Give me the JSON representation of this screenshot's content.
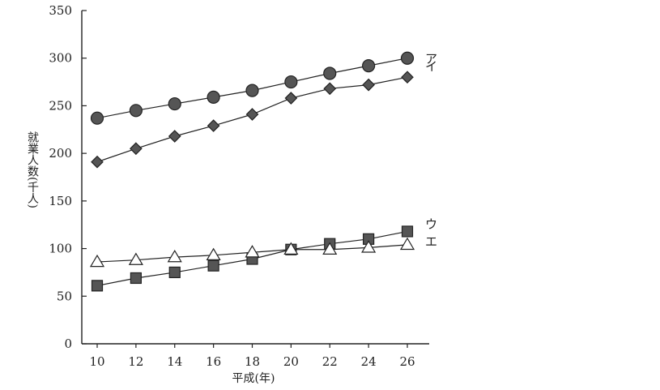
{
  "chart_data": {
    "type": "line",
    "xlabel": "平成(年)",
    "ylabel": "就業人数(千人)",
    "x": [
      10,
      12,
      14,
      16,
      18,
      20,
      22,
      24,
      26
    ],
    "xlim": [
      9,
      27.5
    ],
    "ylim": [
      0,
      350
    ],
    "yticks": [
      0,
      50,
      100,
      150,
      200,
      250,
      300,
      350
    ],
    "grid": false,
    "series": [
      {
        "name": "ア",
        "marker": "circle",
        "values": [
          237,
          245,
          252,
          259,
          266,
          275,
          284,
          292,
          300
        ]
      },
      {
        "name": "イ",
        "marker": "diamond",
        "values": [
          191,
          205,
          218,
          229,
          241,
          258,
          268,
          272,
          280
        ]
      },
      {
        "name": "ウ",
        "marker": "square",
        "values": [
          61,
          69,
          75,
          82,
          89,
          99,
          105,
          110,
          118
        ]
      },
      {
        "name": "エ",
        "marker": "triangle",
        "values": [
          86,
          88,
          91,
          93,
          96,
          99,
          99,
          101,
          104
        ]
      }
    ]
  }
}
